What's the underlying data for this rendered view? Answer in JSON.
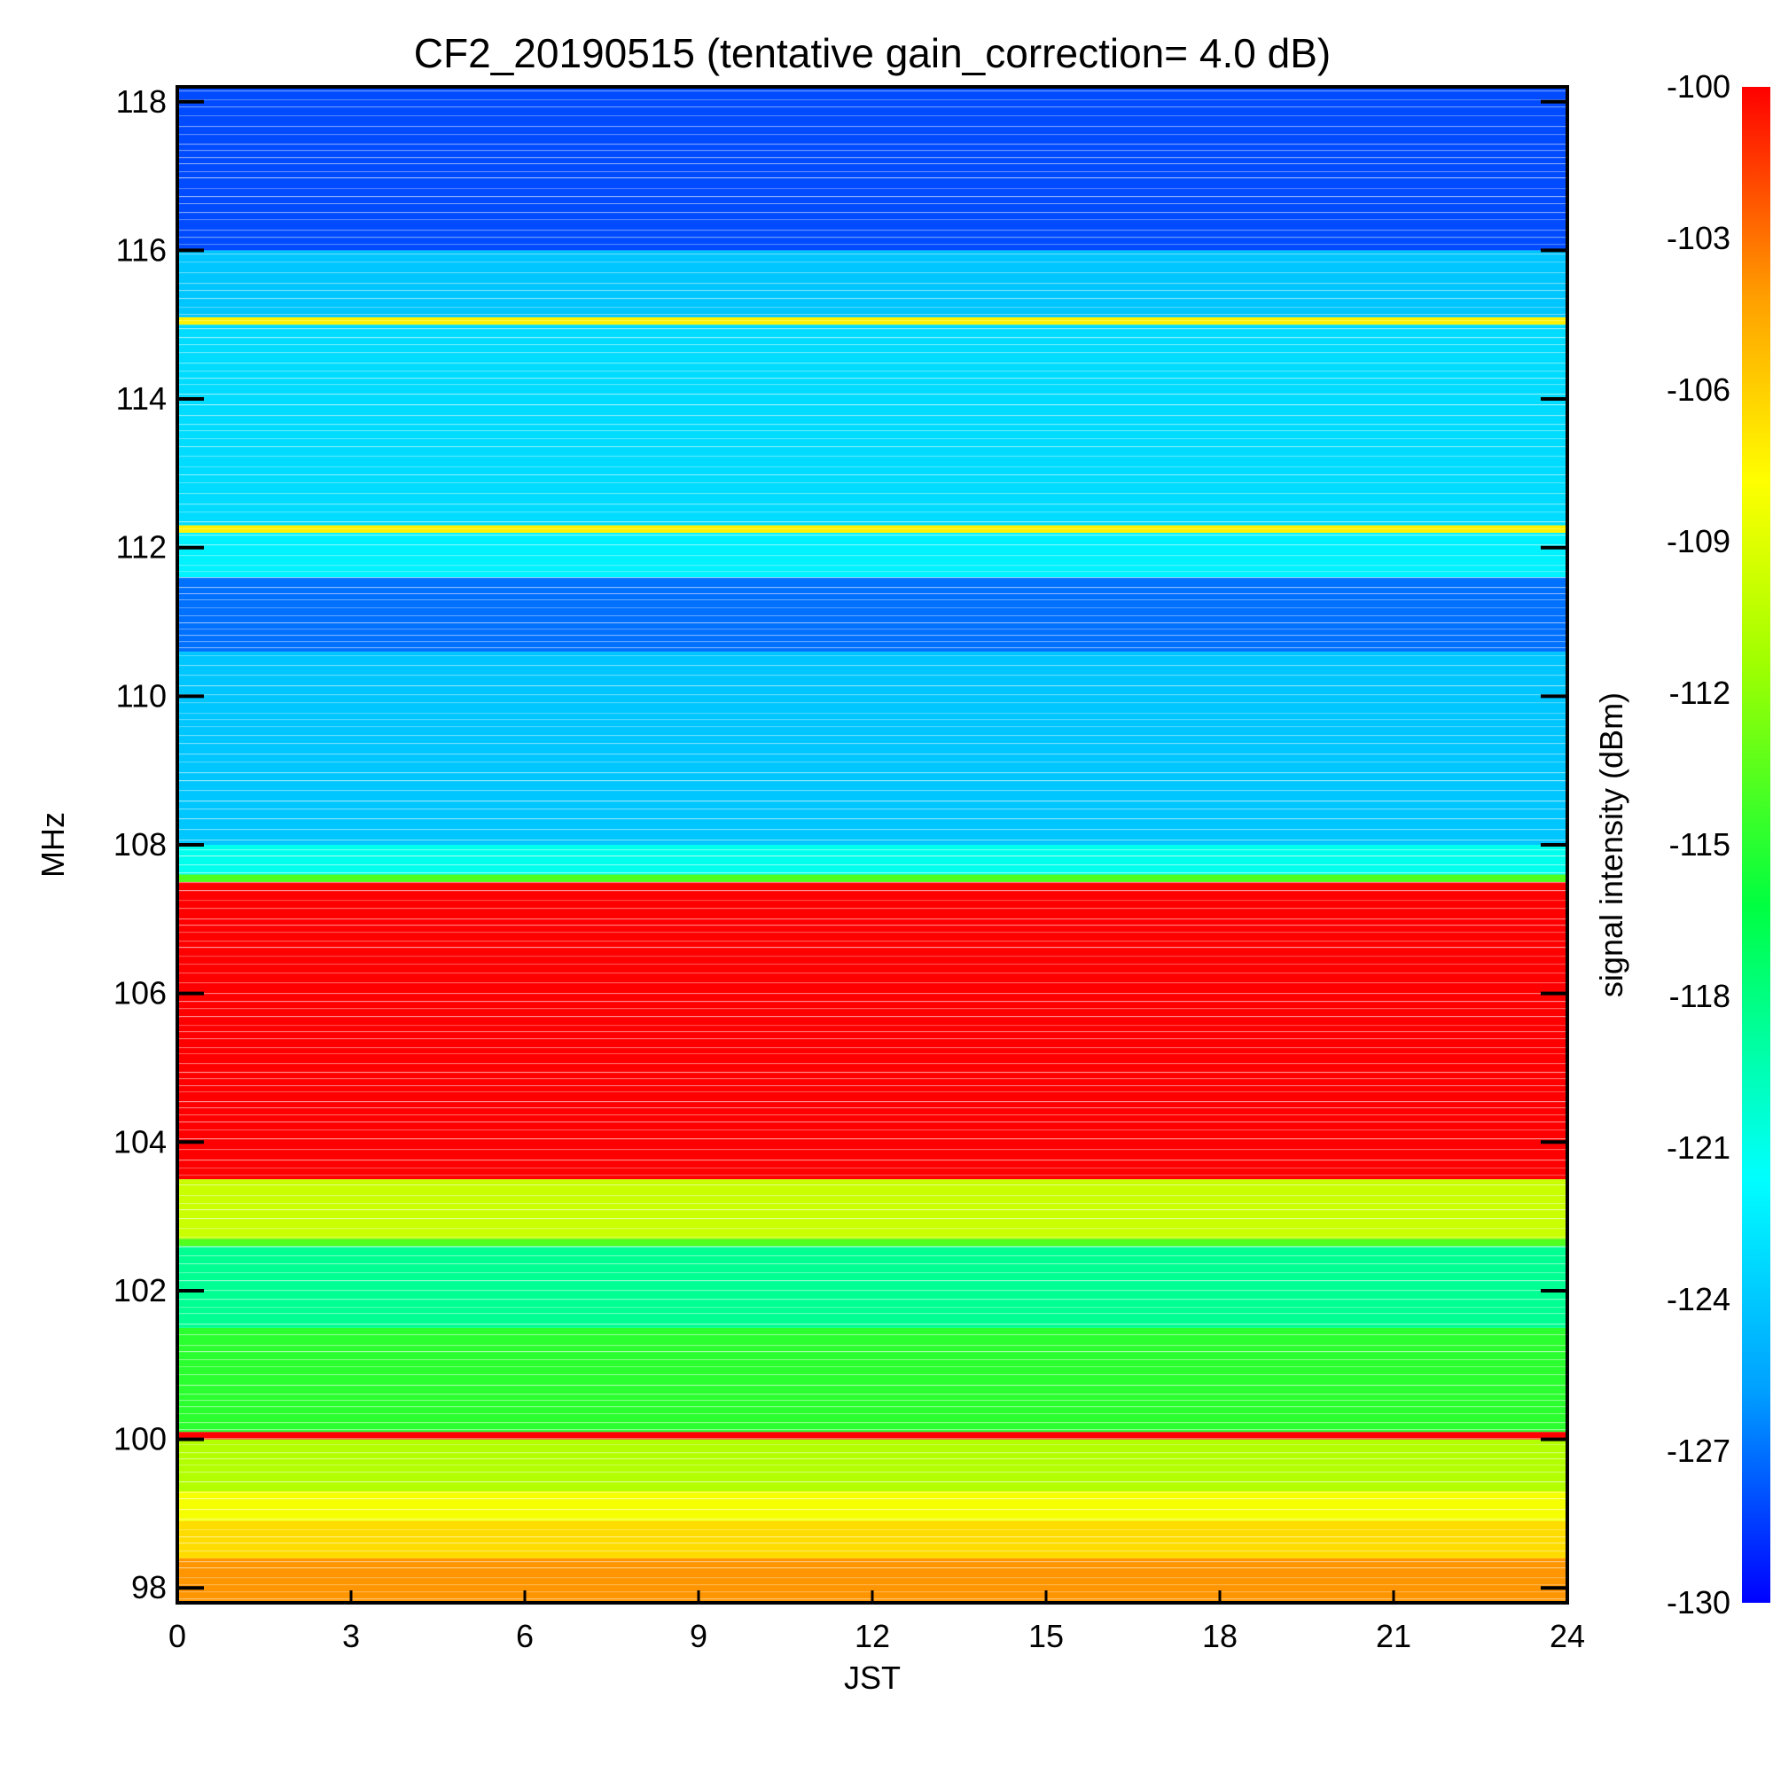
{
  "chart_data": {
    "type": "heatmap",
    "title": "CF2_20190515 (tentative gain_correction=  4.0 dB)",
    "xlabel": "JST",
    "ylabel": "MHz",
    "colorbar_label": "signal intensity (dBm)",
    "xlim": [
      0,
      24
    ],
    "ylim": [
      97.8,
      118.2
    ],
    "x_ticks": [
      "0",
      "3",
      "6",
      "9",
      "12",
      "15",
      "18",
      "21",
      "24"
    ],
    "y_ticks": [
      "98",
      "100",
      "102",
      "104",
      "106",
      "108",
      "110",
      "112",
      "114",
      "116",
      "118"
    ],
    "colorbar_range": [
      -130,
      -100
    ],
    "colorbar_ticks": [
      "-100",
      "-103",
      "-106",
      "-109",
      "-112",
      "-115",
      "-118",
      "-121",
      "-124",
      "-127",
      "-130"
    ],
    "colormap": [
      "#0000ff",
      "#00a0ff",
      "#00ffff",
      "#00ff40",
      "#a0ff00",
      "#ffff00",
      "#ffa000",
      "#ff0000"
    ],
    "frequency_bands": [
      {
        "from": 97.8,
        "to": 98.4,
        "dbm": -104
      },
      {
        "from": 98.4,
        "to": 98.9,
        "dbm": -107
      },
      {
        "from": 98.9,
        "to": 99.3,
        "dbm": -109
      },
      {
        "from": 99.3,
        "to": 100.0,
        "dbm": -112
      },
      {
        "from": 100.0,
        "to": 100.1,
        "dbm": -100
      },
      {
        "from": 100.1,
        "to": 101.5,
        "dbm": -116
      },
      {
        "from": 101.5,
        "to": 102.6,
        "dbm": -119
      },
      {
        "from": 102.6,
        "to": 102.7,
        "dbm": -115
      },
      {
        "from": 102.7,
        "to": 103.5,
        "dbm": -111
      },
      {
        "from": 103.5,
        "to": 107.5,
        "dbm": -100
      },
      {
        "from": 107.5,
        "to": 107.6,
        "dbm": -115
      },
      {
        "from": 107.6,
        "to": 108.0,
        "dbm": -121
      },
      {
        "from": 108.0,
        "to": 110.6,
        "dbm": -124
      },
      {
        "from": 110.6,
        "to": 111.6,
        "dbm": -127
      },
      {
        "from": 111.6,
        "to": 112.2,
        "dbm": -122
      },
      {
        "from": 112.2,
        "to": 112.3,
        "dbm": -108
      },
      {
        "from": 112.3,
        "to": 115.0,
        "dbm": -123
      },
      {
        "from": 115.0,
        "to": 115.1,
        "dbm": -108
      },
      {
        "from": 115.1,
        "to": 116.0,
        "dbm": -124
      },
      {
        "from": 116.0,
        "to": 118.2,
        "dbm": -128
      }
    ]
  }
}
